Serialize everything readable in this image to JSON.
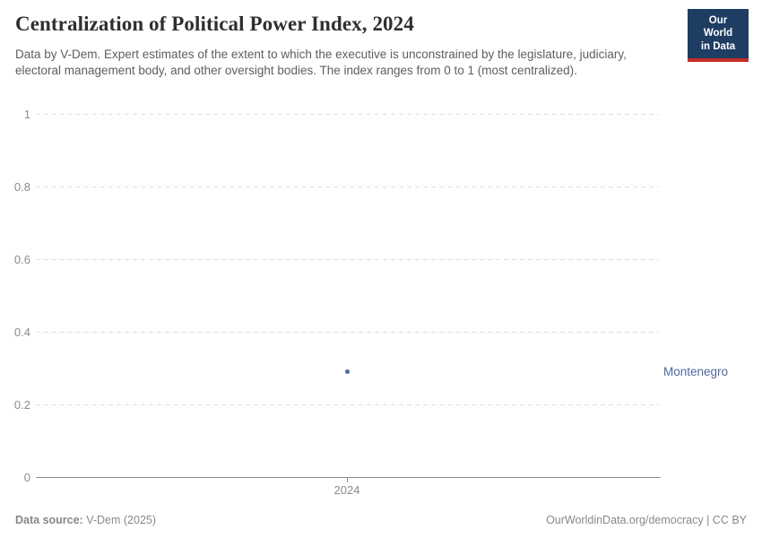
{
  "header": {
    "title": "Centralization of Political Power Index, 2024",
    "subtitle": "Data by V-Dem. Expert estimates of the extent to which the executive is unconstrained by the legislature, judiciary, electoral management body, and other oversight bodies. The index ranges from 0 to 1 (most centralized)."
  },
  "logo": {
    "line1": "Our World",
    "line2": "in Data",
    "bg_color": "#1d3d63",
    "accent_color": "#c32e28"
  },
  "chart_data": {
    "type": "scatter",
    "title": "Centralization of Political Power Index, 2024",
    "x": [
      2024
    ],
    "series": [
      {
        "name": "Montenegro",
        "values": [
          0.29
        ],
        "color": "#4c6a9e"
      }
    ],
    "ylim": [
      0,
      1
    ],
    "yticks": [
      {
        "value": 0,
        "label": "0"
      },
      {
        "value": 0.2,
        "label": "0.2"
      },
      {
        "value": 0.4,
        "label": "0.4"
      },
      {
        "value": 0.6,
        "label": "0.6"
      },
      {
        "value": 0.8,
        "label": "0.8"
      },
      {
        "value": 1,
        "label": "1"
      }
    ],
    "xticks": [
      {
        "value": 2024,
        "label": "2024"
      }
    ],
    "grid": "horizontal-dashed",
    "legend": "entity-label-right"
  },
  "footer": {
    "source_label": "Data source:",
    "source_value": "V-Dem (2025)",
    "license": "OurWorldinData.org/democracy | CC BY"
  }
}
